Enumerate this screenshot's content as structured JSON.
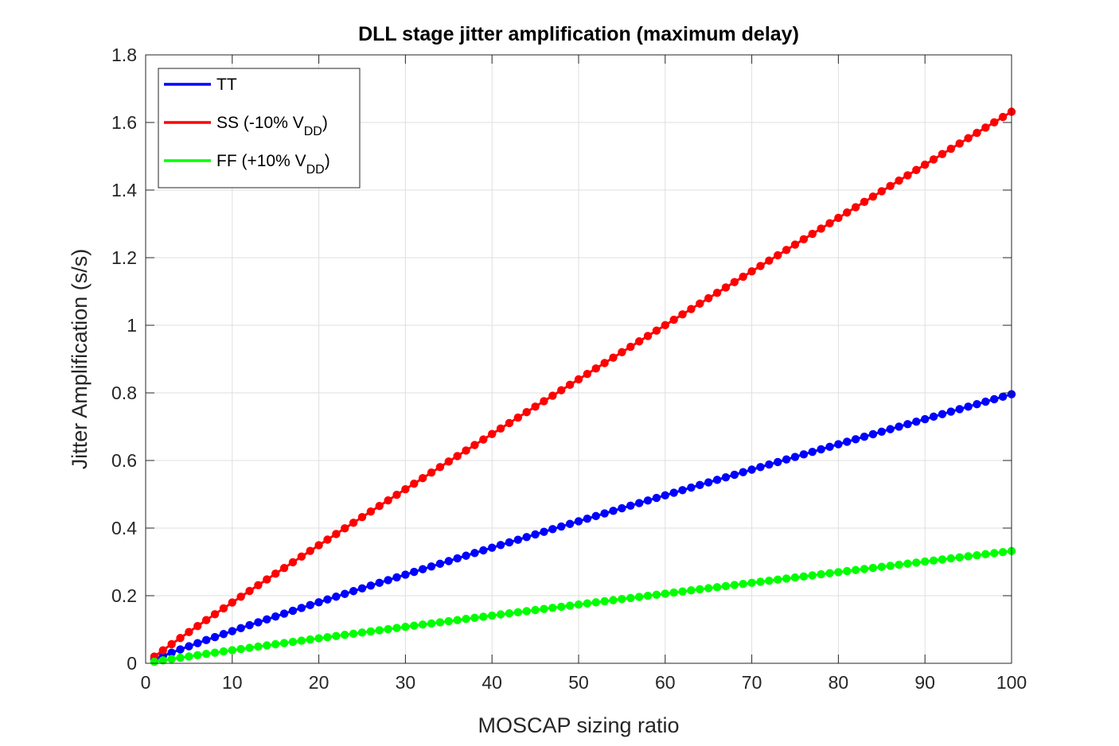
{
  "chart_data": {
    "type": "line",
    "title": "DLL stage jitter amplification (maximum delay)",
    "xlabel": "MOSCAP sizing ratio",
    "ylabel": "Jitter Amplification (s/s)",
    "xlim": [
      0,
      100
    ],
    "ylim": [
      0,
      1.8
    ],
    "xticks": [
      "0",
      "10",
      "20",
      "30",
      "40",
      "50",
      "60",
      "70",
      "80",
      "90",
      "100"
    ],
    "yticks": [
      "0",
      "0.2",
      "0.4",
      "0.6",
      "0.8",
      "1",
      "1.2",
      "1.4",
      "1.6",
      "1.8"
    ],
    "grid": true,
    "legend_position": "top-left",
    "marker": "filled-circle",
    "x": {
      "start": 1,
      "end": 100,
      "step": 1
    },
    "series": [
      {
        "name": "TT",
        "legend_main": "TT",
        "legend_sub": "",
        "legend_tail": "",
        "color": "#0000ff",
        "curve": {
          "type": "power",
          "coef": 0.0114,
          "exp": 0.922
        },
        "points": [
          [
            1,
            0.011
          ],
          [
            10,
            0.095
          ],
          [
            20,
            0.18
          ],
          [
            30,
            0.26
          ],
          [
            40,
            0.34
          ],
          [
            50,
            0.42
          ],
          [
            60,
            0.495
          ],
          [
            70,
            0.57
          ],
          [
            80,
            0.645
          ],
          [
            90,
            0.725
          ],
          [
            100,
            0.8
          ]
        ]
      },
      {
        "name": "SS (-10% V_DD)",
        "legend_main": "SS (-10% V",
        "legend_sub": "DD",
        "legend_tail": ")",
        "color": "#ff0000",
        "curve": {
          "type": "power",
          "coef": 0.0198,
          "exp": 0.958
        },
        "points": [
          [
            1,
            0.02
          ],
          [
            10,
            0.18
          ],
          [
            20,
            0.355
          ],
          [
            30,
            0.525
          ],
          [
            40,
            0.695
          ],
          [
            50,
            0.86
          ],
          [
            60,
            1.02
          ],
          [
            70,
            1.18
          ],
          [
            80,
            1.335
          ],
          [
            90,
            1.485
          ],
          [
            100,
            1.64
          ]
        ]
      },
      {
        "name": "FF (+10% V_DD)",
        "legend_main": "FF (+10% V",
        "legend_sub": "DD",
        "legend_tail": ")",
        "color": "#00ff00",
        "curve": {
          "type": "power",
          "coef": 0.0045,
          "exp": 0.934
        },
        "points": [
          [
            1,
            0.005
          ],
          [
            10,
            0.039
          ],
          [
            20,
            0.074
          ],
          [
            30,
            0.109
          ],
          [
            40,
            0.143
          ],
          [
            50,
            0.175
          ],
          [
            60,
            0.21
          ],
          [
            70,
            0.24
          ],
          [
            80,
            0.27
          ],
          [
            90,
            0.3
          ],
          [
            100,
            0.33
          ]
        ]
      }
    ]
  }
}
